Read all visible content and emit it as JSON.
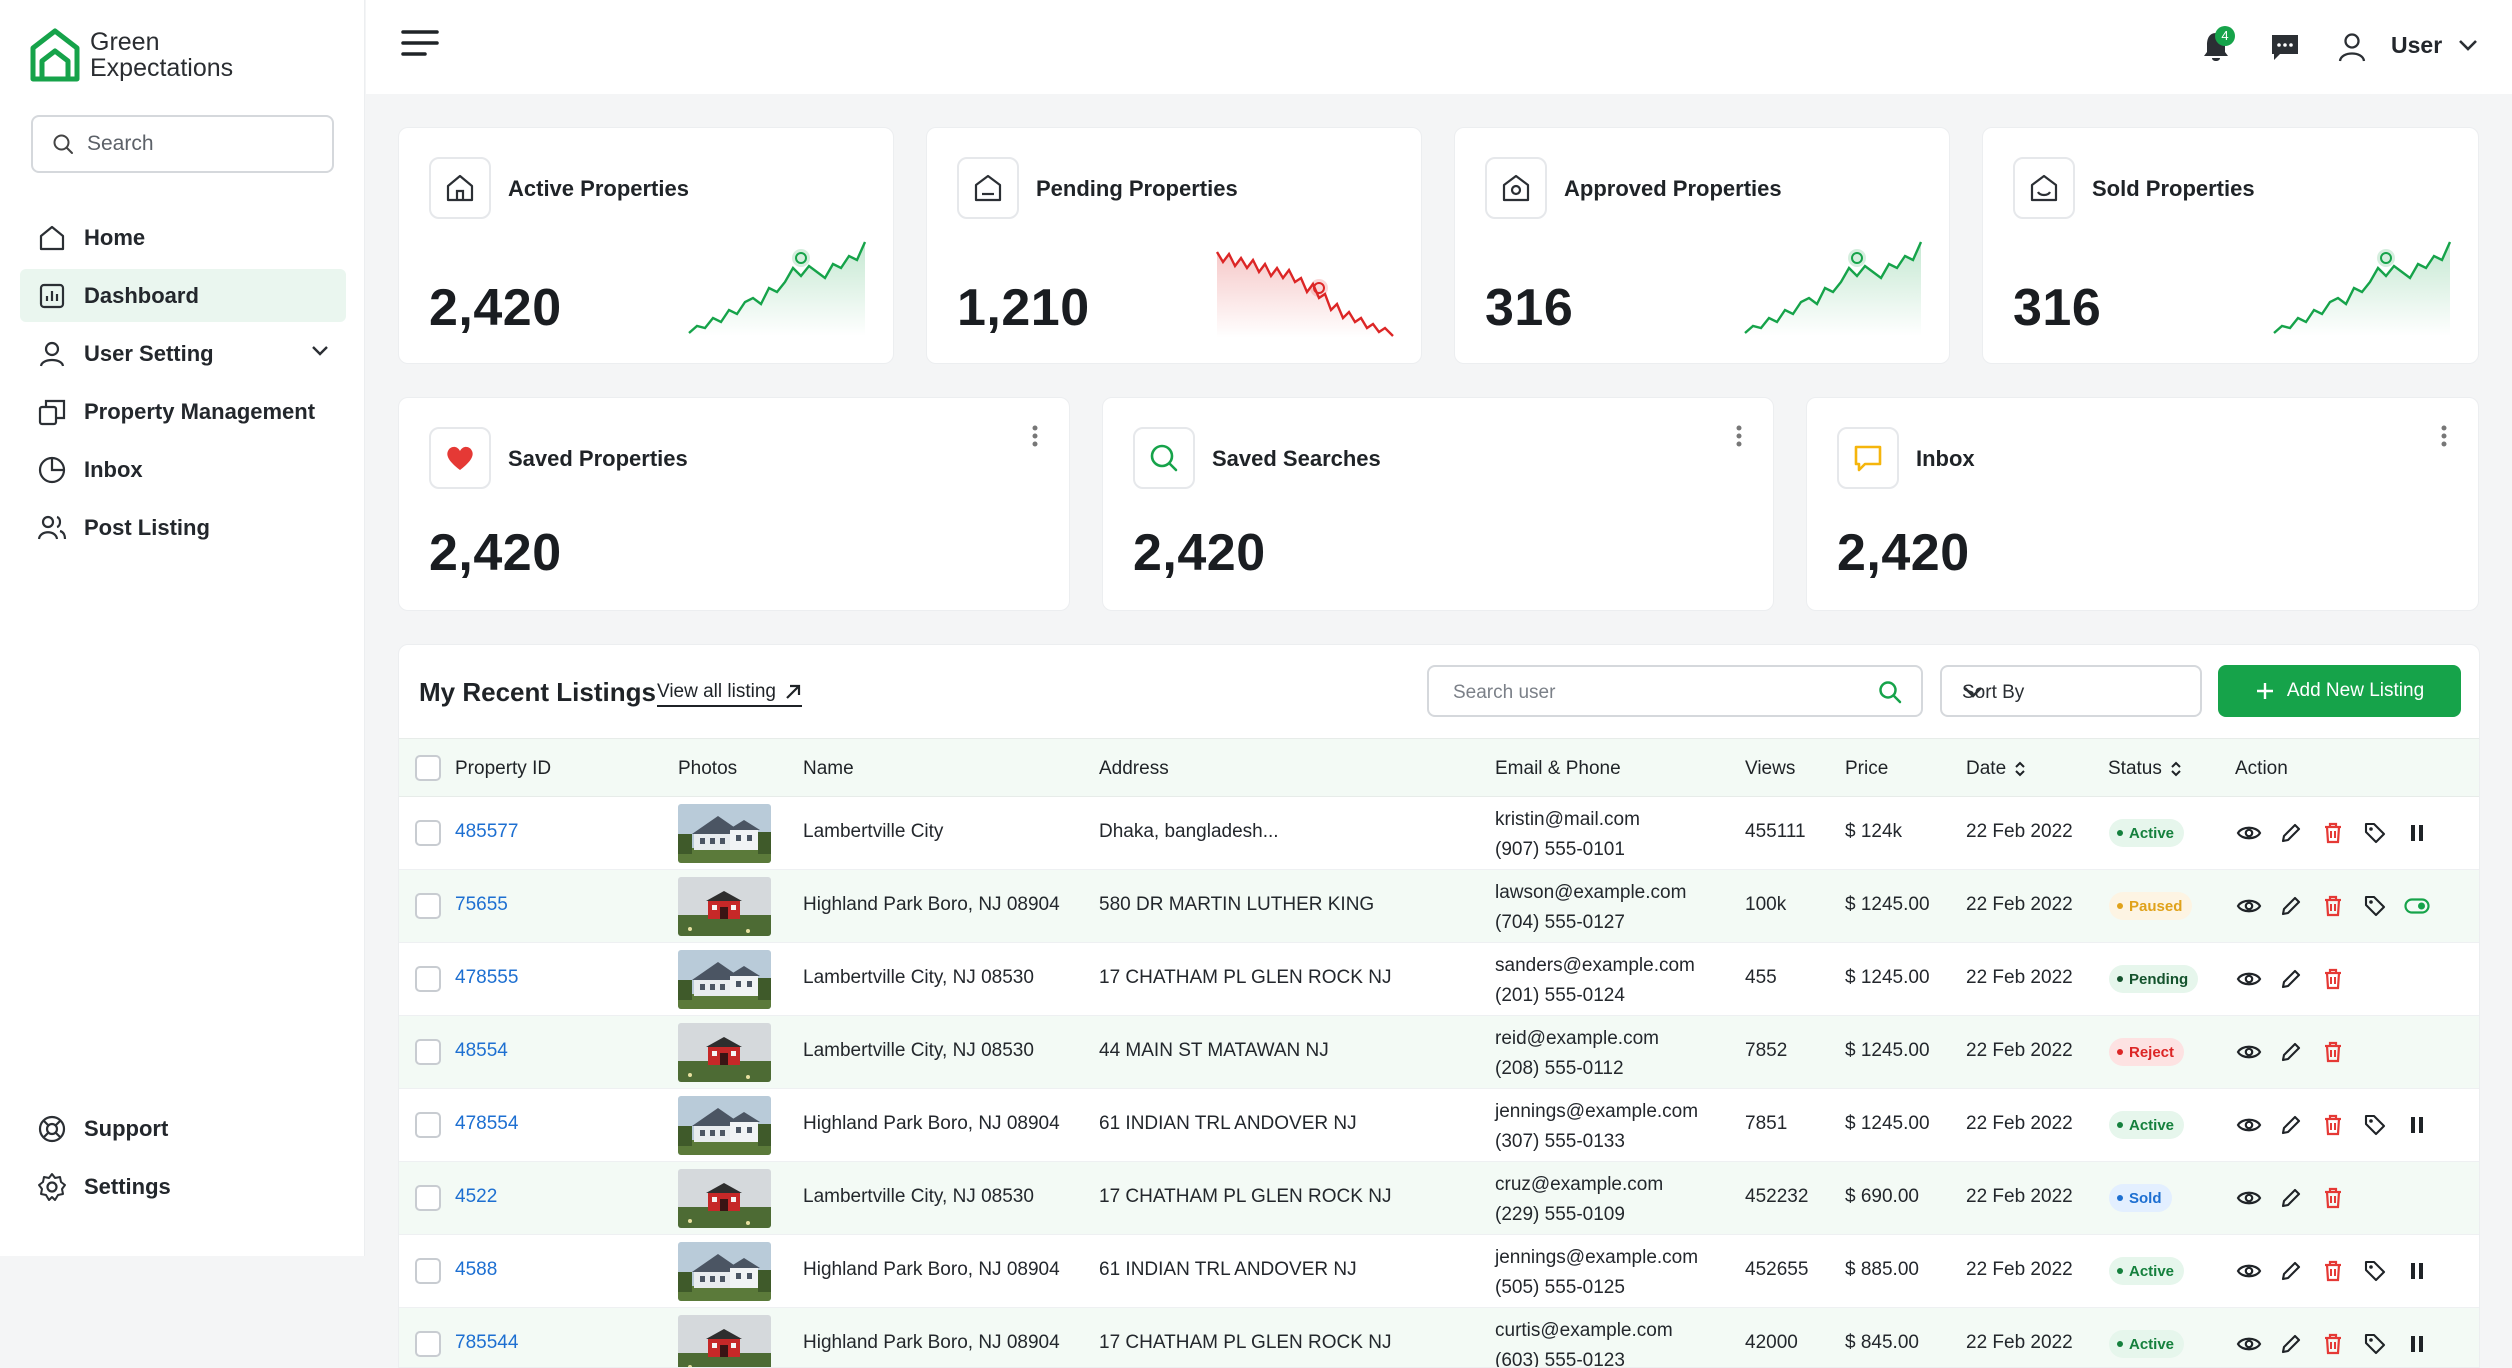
{
  "brand": {
    "line1": "Green",
    "line2": "Expectations",
    "color": "#16a34a"
  },
  "sidebar": {
    "search_placeholder": "Search",
    "items": [
      {
        "label": "Home",
        "icon": "home-icon"
      },
      {
        "label": "Dashboard",
        "icon": "dashboard-icon",
        "active": true
      },
      {
        "label": "User Setting",
        "icon": "user-icon",
        "expandable": true
      },
      {
        "label": "Property Management",
        "icon": "property-management-icon"
      },
      {
        "label": "Inbox",
        "icon": "inbox-icon"
      },
      {
        "label": "Post Listing",
        "icon": "post-listing-icon"
      }
    ],
    "bottom_items": [
      {
        "label": "Support",
        "icon": "support-icon"
      },
      {
        "label": "Settings",
        "icon": "settings-icon"
      }
    ]
  },
  "header": {
    "notification_count": "4",
    "user_label": "User"
  },
  "stats": [
    {
      "title": "Active Properties",
      "value": "2,420",
      "trend": "up",
      "icon": "home-icon"
    },
    {
      "title": "Pending Properties",
      "value": "1,210",
      "trend": "down",
      "icon": "pending-home-icon"
    },
    {
      "title": "Approved Properties",
      "value": "316",
      "trend": "up",
      "icon": "approved-home-icon"
    },
    {
      "title": "Sold Properties",
      "value": "316",
      "trend": "up",
      "icon": "sold-home-icon"
    }
  ],
  "stats2": [
    {
      "title": "Saved Properties",
      "value": "2,420",
      "icon": "heart-icon"
    },
    {
      "title": "Saved Searches",
      "value": "2,420",
      "icon": "search-icon"
    },
    {
      "title": "Inbox",
      "value": "2,420",
      "icon": "message-icon"
    }
  ],
  "listings": {
    "title": "My Recent Listings",
    "view_all": "View all listing",
    "search_placeholder": "Search user",
    "sort_label": "Sort By",
    "add_button": "Add New Listing",
    "columns": {
      "id": "Property ID",
      "photos": "Photos",
      "name": "Name",
      "address": "Address",
      "email_phone": "Email & Phone",
      "views": "Views",
      "price": "Price",
      "date": "Date",
      "status": "Status",
      "action": "Action"
    },
    "rows": [
      {
        "id": "485577",
        "photo": "house",
        "name": "Lambertville City",
        "address": "Dhaka, bangladesh...",
        "email": "kristin@mail.com",
        "phone": "(907) 555-0101",
        "views": "455111",
        "price": "$ 124k",
        "date": "22 Feb 2022",
        "status": "Active",
        "actions": [
          "view",
          "edit",
          "delete",
          "tag",
          "pause"
        ]
      },
      {
        "id": "75655",
        "photo": "barn",
        "name": "Highland Park Boro, NJ 08904",
        "address": "580 DR MARTIN LUTHER KING",
        "email": "lawson@example.com",
        "phone": "(704) 555-0127",
        "views": "100k",
        "price": "$ 1245.00",
        "date": "22 Feb 2022",
        "status": "Paused",
        "actions": [
          "view",
          "edit",
          "delete",
          "tag",
          "toggle"
        ]
      },
      {
        "id": "478555",
        "photo": "house",
        "name": "Lambertville City, NJ 08530",
        "address": "17 CHATHAM PL GLEN ROCK NJ",
        "email": "sanders@example.com",
        "phone": "(201) 555-0124",
        "views": "455",
        "price": "$ 1245.00",
        "date": "22 Feb 2022",
        "status": "Pending",
        "actions": [
          "view",
          "edit",
          "delete"
        ]
      },
      {
        "id": "48554",
        "photo": "barn",
        "name": "Lambertville City, NJ 08530",
        "address": "44 MAIN ST MATAWAN NJ",
        "email": "reid@example.com",
        "phone": "(208) 555-0112",
        "views": "7852",
        "price": "$ 1245.00",
        "date": "22 Feb 2022",
        "status": "Reject",
        "actions": [
          "view",
          "edit",
          "delete"
        ]
      },
      {
        "id": "478554",
        "photo": "house",
        "name": "Highland Park Boro, NJ 08904",
        "address": "61 INDIAN TRL ANDOVER NJ",
        "email": "jennings@example.com",
        "phone": "(307) 555-0133",
        "views": "7851",
        "price": "$ 1245.00",
        "date": "22 Feb 2022",
        "status": "Active",
        "actions": [
          "view",
          "edit",
          "delete",
          "tag",
          "pause"
        ]
      },
      {
        "id": "4522",
        "photo": "barn",
        "name": "Lambertville City, NJ 08530",
        "address": "17 CHATHAM PL GLEN ROCK NJ",
        "email": "cruz@example.com",
        "phone": "(229) 555-0109",
        "views": "452232",
        "price": "$ 690.00",
        "date": "22 Feb 2022",
        "status": "Sold",
        "actions": [
          "view",
          "edit",
          "delete"
        ]
      },
      {
        "id": "4588",
        "photo": "house",
        "name": "Highland Park Boro, NJ 08904",
        "address": "61 INDIAN TRL ANDOVER NJ",
        "email": "jennings@example.com",
        "phone": "(505) 555-0125",
        "views": "452655",
        "price": "$ 885.00",
        "date": "22 Feb 2022",
        "status": "Active",
        "actions": [
          "view",
          "edit",
          "delete",
          "tag",
          "pause"
        ]
      },
      {
        "id": "785544",
        "photo": "barn",
        "name": "Highland Park Boro, NJ 08904",
        "address": "17 CHATHAM PL GLEN ROCK NJ",
        "email": "curtis@example.com",
        "phone": "(603) 555-0123",
        "views": "42000",
        "price": "$ 845.00",
        "date": "22 Feb 2022",
        "status": "Active",
        "actions": [
          "view",
          "edit",
          "delete",
          "tag",
          "pause"
        ]
      }
    ]
  },
  "status_colors": {
    "Active": {
      "bg": "#e6f6ec",
      "fg": "#15803d"
    },
    "Paused": {
      "bg": "#fdf4e3",
      "fg": "#e0a21b"
    },
    "Pending": {
      "bg": "#e6f6ec",
      "fg": "#14532d"
    },
    "Reject": {
      "bg": "#fde2e2",
      "fg": "#dc2626"
    },
    "Sold": {
      "bg": "#e3efff",
      "fg": "#1d6fd1"
    }
  }
}
